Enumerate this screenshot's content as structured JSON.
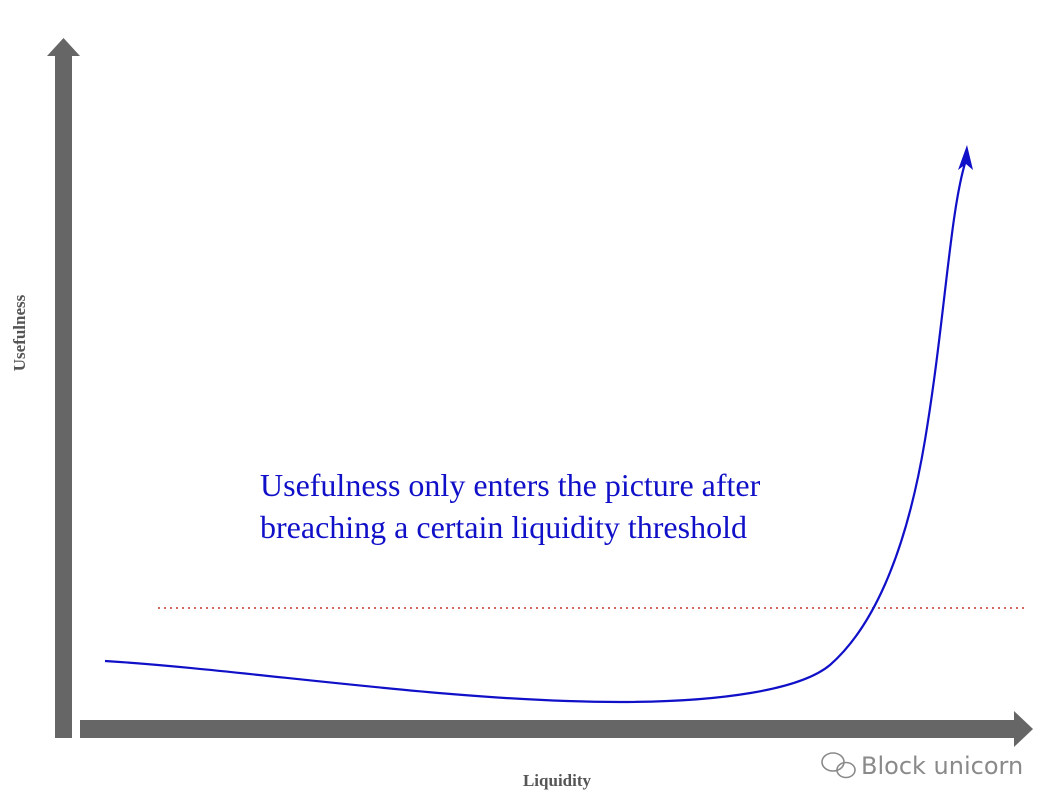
{
  "axes": {
    "y_label": "Usefulness",
    "x_label": "Liquidity"
  },
  "annotation": {
    "lines": [
      "Usefulness only enters the picture after",
      "breaching a certain liquidity threshold"
    ]
  },
  "watermark": "Block unicorn"
}
